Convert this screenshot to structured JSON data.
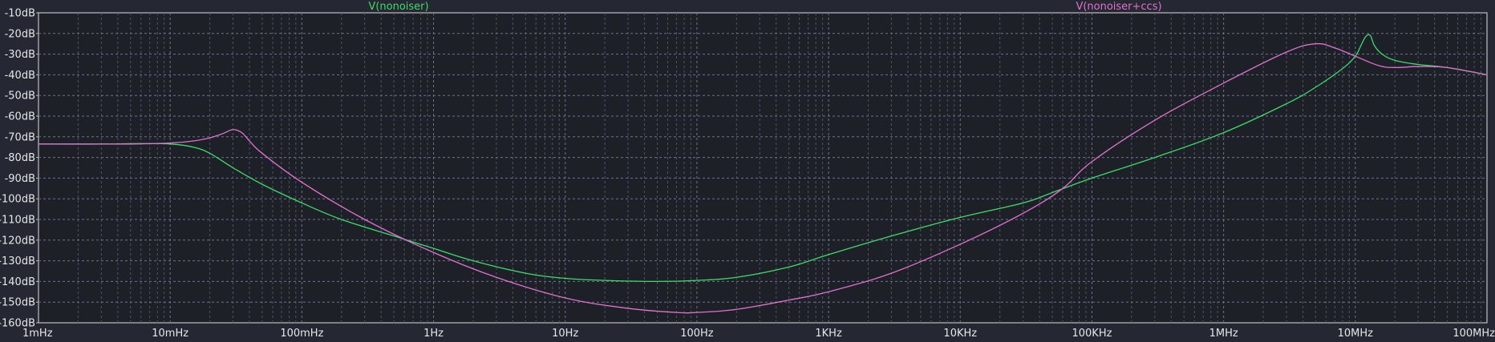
{
  "chart_data": {
    "type": "line",
    "x_scale": "log",
    "xlim": [
      "1mHz",
      "100MHz"
    ],
    "ylim": [
      -160,
      -10
    ],
    "y_unit": "dB",
    "grid": true,
    "legend_placement": "top",
    "x_ticks": [
      "1mHz",
      "10mHz",
      "100mHz",
      "1Hz",
      "10Hz",
      "100Hz",
      "1KHz",
      "10KHz",
      "100KHz",
      "1MHz",
      "10MHz",
      "100MHz"
    ],
    "y_ticks": [
      "-10dB",
      "-20dB",
      "-30dB",
      "-40dB",
      "-50dB",
      "-60dB",
      "-70dB",
      "-80dB",
      "-90dB",
      "-100dB",
      "-110dB",
      "-120dB",
      "-130dB",
      "-140dB",
      "-150dB",
      "-160dB"
    ],
    "series": [
      {
        "name": "V(nonoiser)",
        "color": "#3ddc6a",
        "points": [
          [
            "1mHz",
            -73.5
          ],
          [
            "3mHz",
            -73.5
          ],
          [
            "6mHz",
            -73.3
          ],
          [
            "10mHz",
            -73.5
          ],
          [
            "15mHz",
            -75
          ],
          [
            "20mHz",
            -78
          ],
          [
            "30mHz",
            -85
          ],
          [
            "50mHz",
            -93
          ],
          [
            "100mHz",
            -102
          ],
          [
            "200mHz",
            -110
          ],
          [
            "500mHz",
            -118
          ],
          [
            "1Hz",
            -124
          ],
          [
            "2Hz",
            -130
          ],
          [
            "5Hz",
            -136
          ],
          [
            "10Hz",
            -138.5
          ],
          [
            "20Hz",
            -139.5
          ],
          [
            "50Hz",
            -140
          ],
          [
            "100Hz",
            -139.5
          ],
          [
            "200Hz",
            -138
          ],
          [
            "500Hz",
            -133
          ],
          [
            "1KHz",
            -127
          ],
          [
            "3KHz",
            -118
          ],
          [
            "10KHz",
            -109
          ],
          [
            "30KHz",
            -102
          ],
          [
            "50KHz",
            -97
          ],
          [
            "100KHz",
            -90
          ],
          [
            "300KHz",
            -80
          ],
          [
            "1MHz",
            -68
          ],
          [
            "3MHz",
            -54
          ],
          [
            "5MHz",
            -46
          ],
          [
            "8MHz",
            -37
          ],
          [
            "10MHz",
            -31
          ],
          [
            "11MHz",
            -26
          ],
          [
            "12MHz",
            -21.5
          ],
          [
            "13MHz",
            -21
          ],
          [
            "14MHz",
            -26
          ],
          [
            "16MHz",
            -30
          ],
          [
            "20MHz",
            -33
          ],
          [
            "30MHz",
            -35
          ],
          [
            "50MHz",
            -36.5
          ],
          [
            "100MHz",
            -40
          ]
        ]
      },
      {
        "name": "V(nonoiser+ccs)",
        "color": "#e270d0",
        "points": [
          [
            "1mHz",
            -73.5
          ],
          [
            "5mHz",
            -73.5
          ],
          [
            "10mHz",
            -73
          ],
          [
            "15mHz",
            -72
          ],
          [
            "20mHz",
            -70.5
          ],
          [
            "25mHz",
            -68.5
          ],
          [
            "30mHz",
            -66.5
          ],
          [
            "35mHz",
            -68
          ],
          [
            "40mHz",
            -72
          ],
          [
            "50mHz",
            -78
          ],
          [
            "100mHz",
            -92
          ],
          [
            "300mHz",
            -110
          ],
          [
            "1Hz",
            -126
          ],
          [
            "3Hz",
            -138
          ],
          [
            "10Hz",
            -148
          ],
          [
            "30Hz",
            -153
          ],
          [
            "70Hz",
            -155
          ],
          [
            "100Hz",
            -155
          ],
          [
            "200Hz",
            -153.5
          ],
          [
            "500Hz",
            -149
          ],
          [
            "1KHz",
            -145
          ],
          [
            "3KHz",
            -136
          ],
          [
            "10KHz",
            -122
          ],
          [
            "30KHz",
            -107
          ],
          [
            "60KHz",
            -95
          ],
          [
            "100KHz",
            -82
          ],
          [
            "300KHz",
            -62
          ],
          [
            "1MHz",
            -44
          ],
          [
            "3MHz",
            -29
          ],
          [
            "5MHz",
            -25
          ],
          [
            "7MHz",
            -27
          ],
          [
            "10MHz",
            -31
          ],
          [
            "15MHz",
            -35.5
          ],
          [
            "20MHz",
            -36.5
          ],
          [
            "30MHz",
            -36
          ],
          [
            "50MHz",
            -36.5
          ],
          [
            "100MHz",
            -40
          ]
        ]
      }
    ]
  }
}
